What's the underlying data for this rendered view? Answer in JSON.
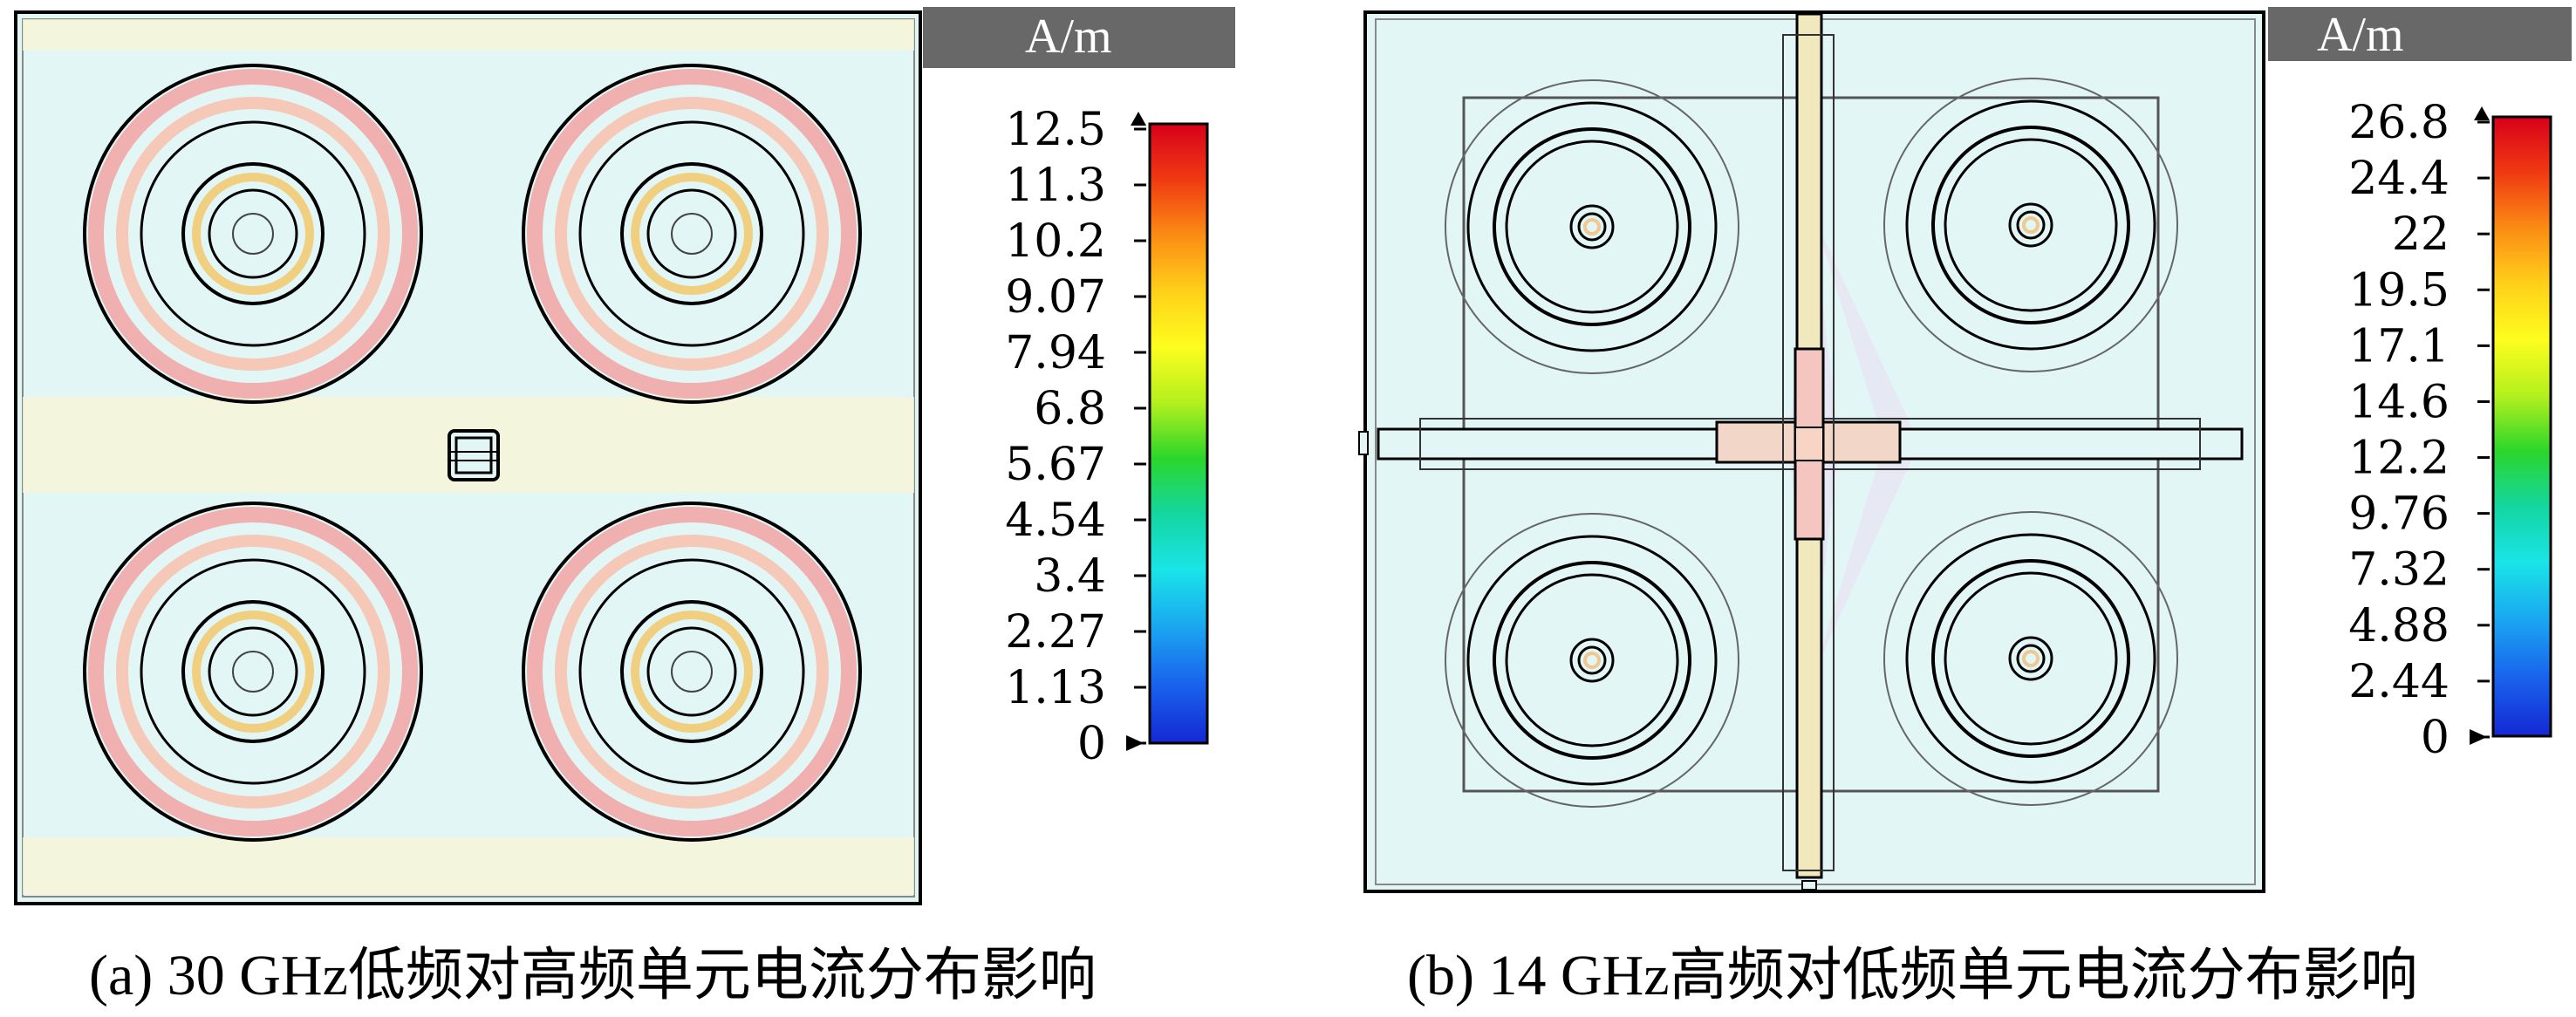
{
  "panels": [
    {
      "id": "a",
      "caption": "(a) 30 GHz低频对高频单元电流分布影响",
      "unit": "A/m",
      "scale_labels": [
        "12.5",
        "11.3",
        "10.2",
        "9.07",
        "7.94",
        "6.8",
        "5.67",
        "4.54",
        "3.4",
        "2.27",
        "1.13",
        "0"
      ]
    },
    {
      "id": "b",
      "caption": "(b) 14 GHz高频对低频单元电流分布影响",
      "unit": "A/m",
      "scale_labels": [
        "26.8",
        "24.4",
        "22",
        "19.5",
        "17.1",
        "14.6",
        "12.2",
        "9.76",
        "7.32",
        "4.88",
        "2.44",
        "0"
      ]
    }
  ],
  "colors": {
    "background": "#e2f6f6",
    "colormap": [
      "#d8001a",
      "#f03a12",
      "#fb8c14",
      "#ffd01a",
      "#fdfd1e",
      "#b4f01e",
      "#2bd62a",
      "#14d6a0",
      "#1ae4e8",
      "#1aa8f0",
      "#1a66ee",
      "#1428d4"
    ],
    "header": "#686868"
  }
}
